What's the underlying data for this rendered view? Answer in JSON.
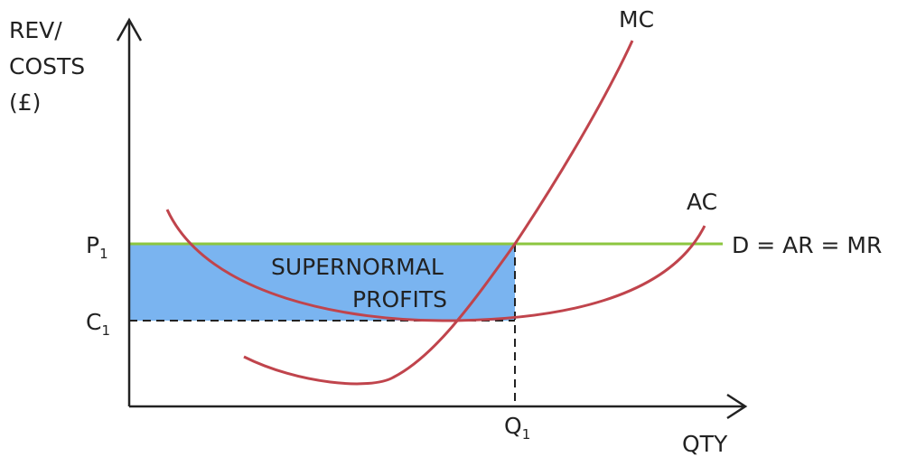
{
  "axes": {
    "y_label": [
      "REV/",
      "COSTS",
      "(£)"
    ],
    "x_label": "QTY"
  },
  "curves": {
    "mc": "MC",
    "ac": "AC",
    "demand": "D = AR = MR"
  },
  "points": {
    "p": {
      "letter": "P",
      "sub": "1"
    },
    "c": {
      "letter": "C",
      "sub": "1"
    },
    "q": {
      "letter": "Q",
      "sub": "1"
    }
  },
  "area": [
    "SUPERNORMAL",
    "PROFITS"
  ]
}
